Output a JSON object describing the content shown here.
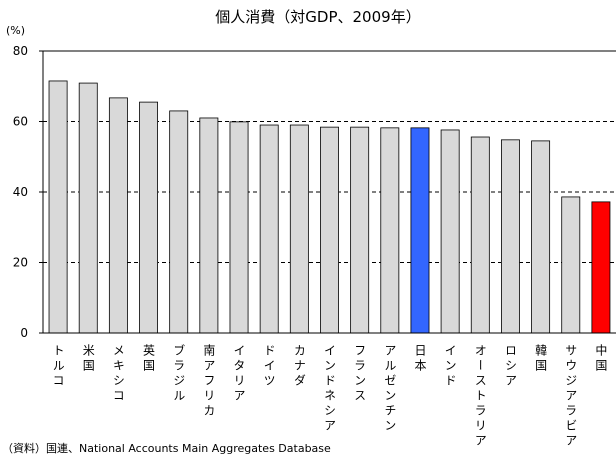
{
  "chart_data": {
    "type": "bar",
    "title": "個人消費（対GDP、2009年）",
    "y_unit": "(%)",
    "source": "（資料）国連、National Accounts Main Aggregates  Database",
    "categories": [
      "トルコ",
      "米国",
      "メキシコ",
      "英国",
      "ブラジル",
      "南アフリカ",
      "イタリア",
      "ドイツ",
      "カナダ",
      "インドネシア",
      "フランス",
      "アルゼンチン",
      "日本",
      "インド",
      "オーストラリア",
      "ロシア",
      "韓国",
      "サウジアラビア",
      "中国"
    ],
    "values": [
      71.5,
      70.9,
      66.7,
      65.5,
      63.0,
      61.0,
      59.9,
      59.0,
      59.0,
      58.4,
      58.4,
      58.2,
      58.2,
      57.6,
      55.6,
      54.8,
      54.5,
      38.6,
      37.2
    ],
    "colors": [
      "#d9d9d9",
      "#d9d9d9",
      "#d9d9d9",
      "#d9d9d9",
      "#d9d9d9",
      "#d9d9d9",
      "#d9d9d9",
      "#d9d9d9",
      "#d9d9d9",
      "#d9d9d9",
      "#d9d9d9",
      "#d9d9d9",
      "#3366ff",
      "#d9d9d9",
      "#d9d9d9",
      "#d9d9d9",
      "#d9d9d9",
      "#d9d9d9",
      "#ff0000"
    ],
    "ylim": [
      0,
      80
    ],
    "yticks": [
      0,
      20,
      40,
      60,
      80
    ],
    "grid": true
  }
}
